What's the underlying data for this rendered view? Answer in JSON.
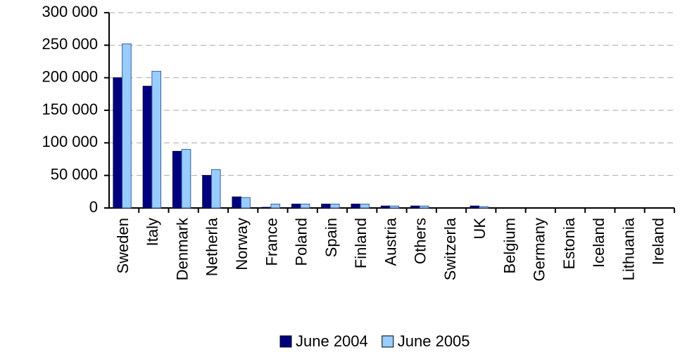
{
  "chart_data": {
    "type": "bar",
    "categories": [
      "Sweden",
      "Italy",
      "Denmark",
      "Netherla",
      "Norway",
      "France",
      "Poland",
      "Spain",
      "Finland",
      "Austria",
      "Others",
      "Switzerla",
      "UK",
      "Belgium",
      "Germany",
      "Estonia",
      "Iceland",
      "Lithuania",
      "Ireland"
    ],
    "series": [
      {
        "name": "June 2004",
        "color": "#00007f",
        "values": [
          200000,
          187000,
          87000,
          50000,
          17000,
          1000,
          6000,
          6000,
          6000,
          3000,
          3000,
          0,
          3000,
          0,
          0,
          0,
          0,
          0,
          0
        ]
      },
      {
        "name": "June 2005",
        "color": "#99ccff",
        "values": [
          252000,
          210000,
          90000,
          59000,
          16000,
          6000,
          6000,
          6000,
          6000,
          3000,
          3000,
          0,
          2000,
          0,
          0,
          0,
          0,
          0,
          0
        ]
      }
    ],
    "ylim": [
      0,
      300000
    ],
    "yticks": [
      0,
      {
        "value": 50000,
        "label": "50 000"
      },
      {
        "value": 100000,
        "label": "100 000"
      },
      {
        "value": 150000,
        "label": "150 000"
      },
      {
        "value": 200000,
        "label": "200 000"
      },
      {
        "value": 250000,
        "label": "250 000"
      },
      {
        "value": 300000,
        "label": "300 000"
      }
    ],
    "grid": true,
    "legend": "bottom"
  }
}
